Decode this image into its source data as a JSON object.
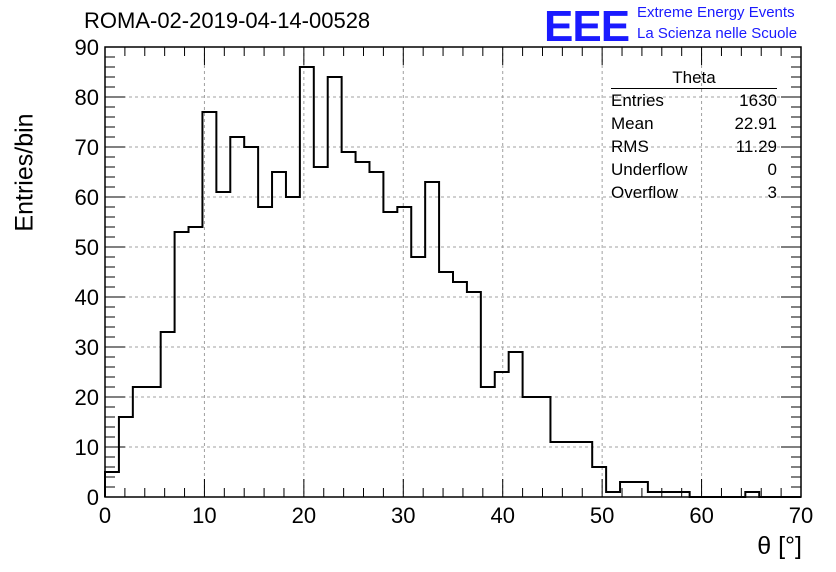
{
  "header": {
    "title": "ROMA-02-2019-04-14-00528",
    "logo_text": "EEE",
    "logo_line1": "Extreme Energy Events",
    "logo_line2": "La Scienza nelle Scuole"
  },
  "stats_box": {
    "title": "Theta",
    "rows": [
      {
        "label": "Entries",
        "value": "1630"
      },
      {
        "label": "Mean",
        "value": "22.91"
      },
      {
        "label": "RMS",
        "value": "11.29"
      },
      {
        "label": "Underflow",
        "value": "0"
      },
      {
        "label": "Overflow",
        "value": "3"
      }
    ]
  },
  "chart_data": {
    "type": "bar",
    "style": "step histogram",
    "xlabel": "θ [°]",
    "ylabel": "Entries/bin",
    "xlim": [
      0,
      70
    ],
    "ylim": [
      0,
      90
    ],
    "grid": true,
    "bin_width": 1.4,
    "x_ticks": [
      0,
      10,
      20,
      30,
      40,
      50,
      60,
      70
    ],
    "y_ticks": [
      0,
      10,
      20,
      30,
      40,
      50,
      60,
      70,
      80,
      90
    ],
    "values": [
      5,
      16,
      22,
      22,
      33,
      53,
      54,
      77,
      61,
      72,
      70,
      58,
      65,
      60,
      86,
      66,
      84,
      69,
      67,
      65,
      57,
      58,
      48,
      63,
      45,
      43,
      41,
      22,
      25,
      29,
      20,
      20,
      11,
      11,
      11,
      6,
      1,
      3,
      3,
      1,
      1,
      1,
      0,
      0,
      0,
      0,
      1,
      0,
      0,
      0
    ],
    "colors": {
      "line": "#000000",
      "grid": "#a0a0a0",
      "logo": "#1a1aff"
    }
  }
}
